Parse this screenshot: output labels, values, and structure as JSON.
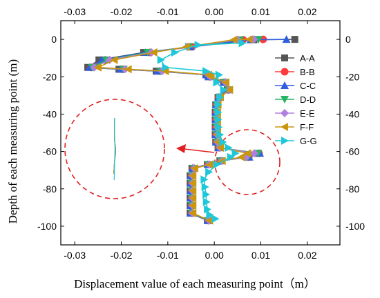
{
  "chart_data": {
    "type": "line",
    "xlabel": "Displacement value of each measuring point（m）",
    "ylabel": "Depth of each measuring point (m)",
    "xlim": [
      -0.033,
      0.027
    ],
    "ylim": [
      -110,
      10
    ],
    "x_ticks": [
      -0.03,
      -0.02,
      -0.01,
      0.0,
      0.01,
      0.02
    ],
    "x_tick_labels": [
      "-0.03",
      "-0.02",
      "-0.01",
      "0.00",
      "0.01",
      "0.02"
    ],
    "y_ticks": [
      0,
      -20,
      -40,
      -60,
      -80,
      -100
    ],
    "y_tick_labels": [
      "0",
      "-20",
      "-40",
      "-60",
      "-80",
      "-100"
    ],
    "grid": false,
    "legend_position": "right",
    "series": [
      {
        "name": "A-A",
        "color": "#555555",
        "marker": "square",
        "points": [
          [
            0.0173,
            0
          ],
          [
            0.0085,
            -0.2
          ],
          [
            -0.005,
            -4
          ],
          [
            -0.0152,
            -7
          ],
          [
            -0.0248,
            -11
          ],
          [
            -0.0272,
            -15
          ],
          [
            -0.0205,
            -16
          ],
          [
            -0.0125,
            -17
          ],
          [
            -0.0018,
            -19
          ],
          [
            -0.0013,
            -20
          ],
          [
            0.002,
            -23
          ],
          [
            0.0028,
            -27
          ],
          [
            0.0008,
            -31
          ],
          [
            0.0003,
            -35
          ],
          [
            0.0002,
            -39
          ],
          [
            0.0002,
            -43
          ],
          [
            0.0002,
            -47
          ],
          [
            0.0002,
            -51
          ],
          [
            0.0003,
            -55
          ],
          [
            0.0008,
            -58
          ],
          [
            0.0092,
            -61
          ],
          [
            0.0072,
            -63
          ],
          [
            0.0012,
            -65
          ],
          [
            -0.0015,
            -67
          ],
          [
            -0.0048,
            -69
          ],
          [
            -0.0052,
            -73
          ],
          [
            -0.0052,
            -77
          ],
          [
            -0.0052,
            -81
          ],
          [
            -0.0052,
            -85
          ],
          [
            -0.0052,
            -89
          ],
          [
            -0.0052,
            -93
          ],
          [
            -0.0015,
            -97
          ]
        ]
      },
      {
        "name": "B-B",
        "color": "#ff3b3b",
        "marker": "circle",
        "points": [
          [
            0.0105,
            0
          ],
          [
            0.0062,
            -0.2
          ],
          [
            -0.0048,
            -4
          ],
          [
            -0.0138,
            -7
          ],
          [
            -0.0235,
            -11
          ],
          [
            -0.0265,
            -15
          ],
          [
            -0.0198,
            -16
          ],
          [
            -0.0118,
            -17
          ],
          [
            -0.0015,
            -19
          ],
          [
            -0.001,
            -20
          ],
          [
            0.0022,
            -23
          ],
          [
            0.003,
            -27
          ],
          [
            0.001,
            -31
          ],
          [
            0.0005,
            -35
          ],
          [
            0.0004,
            -39
          ],
          [
            0.0004,
            -43
          ],
          [
            0.0004,
            -47
          ],
          [
            0.0004,
            -51
          ],
          [
            0.0005,
            -55
          ],
          [
            0.001,
            -58
          ],
          [
            0.0096,
            -61
          ],
          [
            0.0074,
            -63
          ],
          [
            0.0014,
            -65
          ],
          [
            -0.0013,
            -67
          ],
          [
            -0.0045,
            -69
          ],
          [
            -0.0049,
            -73
          ],
          [
            -0.0049,
            -77
          ],
          [
            -0.0049,
            -81
          ],
          [
            -0.0049,
            -85
          ],
          [
            -0.0049,
            -89
          ],
          [
            -0.0049,
            -93
          ],
          [
            -0.0013,
            -97
          ]
        ]
      },
      {
        "name": "C-C",
        "color": "#2f5fe0",
        "marker": "triangle-up",
        "points": [
          [
            0.0155,
            0
          ],
          [
            0.0078,
            -0.2
          ],
          [
            -0.0052,
            -4
          ],
          [
            -0.0148,
            -7
          ],
          [
            -0.0242,
            -11
          ],
          [
            -0.0268,
            -15
          ],
          [
            -0.0202,
            -16
          ],
          [
            -0.0122,
            -17
          ],
          [
            -0.0017,
            -19
          ],
          [
            -0.0012,
            -20
          ],
          [
            0.0021,
            -23
          ],
          [
            0.0029,
            -27
          ],
          [
            0.0009,
            -31
          ],
          [
            0.0004,
            -35
          ],
          [
            0.0003,
            -39
          ],
          [
            0.0003,
            -43
          ],
          [
            0.0003,
            -47
          ],
          [
            0.0003,
            -51
          ],
          [
            0.0004,
            -55
          ],
          [
            0.0009,
            -58
          ],
          [
            0.0098,
            -61
          ],
          [
            0.0075,
            -63
          ],
          [
            0.0013,
            -65
          ],
          [
            -0.0014,
            -67
          ],
          [
            -0.0047,
            -69
          ],
          [
            -0.0051,
            -73
          ],
          [
            -0.0051,
            -77
          ],
          [
            -0.0051,
            -81
          ],
          [
            -0.0051,
            -85
          ],
          [
            -0.0051,
            -89
          ],
          [
            -0.0051,
            -93
          ],
          [
            -0.0014,
            -97
          ]
        ]
      },
      {
        "name": "D-D",
        "color": "#28b463",
        "marker": "triangle-down",
        "points": [
          [
            0.0095,
            0
          ],
          [
            0.0055,
            -0.2
          ],
          [
            -0.0055,
            -4
          ],
          [
            -0.0143,
            -7
          ],
          [
            -0.0232,
            -11
          ],
          [
            -0.0262,
            -15
          ],
          [
            -0.0195,
            -16
          ],
          [
            -0.0115,
            -17
          ],
          [
            -0.0014,
            -19
          ],
          [
            -0.0009,
            -20
          ],
          [
            0.0023,
            -23
          ],
          [
            0.0031,
            -27
          ],
          [
            0.0011,
            -31
          ],
          [
            0.0006,
            -35
          ],
          [
            0.0005,
            -39
          ],
          [
            0.0005,
            -43
          ],
          [
            0.0005,
            -47
          ],
          [
            0.0005,
            -51
          ],
          [
            0.0006,
            -55
          ],
          [
            0.0011,
            -58
          ],
          [
            0.0094,
            -61
          ],
          [
            0.0072,
            -63
          ],
          [
            0.0015,
            -65
          ],
          [
            -0.0012,
            -67
          ],
          [
            -0.0044,
            -69
          ],
          [
            -0.0048,
            -73
          ],
          [
            -0.0048,
            -77
          ],
          [
            -0.0048,
            -81
          ],
          [
            -0.0048,
            -85
          ],
          [
            -0.0048,
            -89
          ],
          [
            -0.0048,
            -93
          ],
          [
            -0.0012,
            -97
          ]
        ]
      },
      {
        "name": "E-E",
        "color": "#b07fe0",
        "marker": "diamond",
        "points": [
          [
            0.0085,
            0
          ],
          [
            0.005,
            -0.2
          ],
          [
            -0.0058,
            -4
          ],
          [
            -0.0135,
            -7
          ],
          [
            -0.0225,
            -11
          ],
          [
            -0.0258,
            -15
          ],
          [
            -0.0192,
            -16
          ],
          [
            -0.0112,
            -17
          ],
          [
            -0.0013,
            -19
          ],
          [
            -0.0008,
            -20
          ],
          [
            0.0024,
            -23
          ],
          [
            0.0032,
            -27
          ],
          [
            0.0012,
            -31
          ],
          [
            0.0007,
            -35
          ],
          [
            0.0006,
            -39
          ],
          [
            0.0006,
            -43
          ],
          [
            0.0006,
            -47
          ],
          [
            0.0006,
            -51
          ],
          [
            0.0007,
            -55
          ],
          [
            0.0012,
            -58
          ],
          [
            0.0086,
            -61
          ],
          [
            0.0068,
            -63
          ],
          [
            0.0016,
            -65
          ],
          [
            -0.0011,
            -67
          ],
          [
            -0.0043,
            -69
          ],
          [
            -0.0047,
            -73
          ],
          [
            -0.0047,
            -77
          ],
          [
            -0.0047,
            -81
          ],
          [
            -0.0047,
            -85
          ],
          [
            -0.0047,
            -89
          ],
          [
            -0.0047,
            -93
          ],
          [
            -0.0011,
            -97
          ]
        ]
      },
      {
        "name": "F-F",
        "color": "#c9960c",
        "marker": "triangle-left",
        "points": [
          [
            0.0075,
            0
          ],
          [
            0.0042,
            -0.2
          ],
          [
            -0.006,
            -4
          ],
          [
            -0.013,
            -7
          ],
          [
            -0.0215,
            -11
          ],
          [
            -0.025,
            -15
          ],
          [
            -0.0185,
            -16
          ],
          [
            -0.0105,
            -17
          ],
          [
            -0.0012,
            -19
          ],
          [
            -0.0007,
            -20
          ],
          [
            0.0025,
            -23
          ],
          [
            0.0033,
            -27
          ],
          [
            0.0013,
            -31
          ],
          [
            0.0008,
            -35
          ],
          [
            0.0007,
            -39
          ],
          [
            0.0007,
            -43
          ],
          [
            0.0007,
            -47
          ],
          [
            0.0007,
            -51
          ],
          [
            0.0008,
            -55
          ],
          [
            0.0013,
            -58
          ],
          [
            0.0072,
            -61
          ],
          [
            0.0058,
            -63
          ],
          [
            0.0017,
            -65
          ],
          [
            -0.001,
            -67
          ],
          [
            -0.0042,
            -69
          ],
          [
            -0.0046,
            -73
          ],
          [
            -0.0046,
            -77
          ],
          [
            -0.0046,
            -81
          ],
          [
            -0.0046,
            -85
          ],
          [
            -0.0046,
            -89
          ],
          [
            -0.0046,
            -93
          ],
          [
            -0.001,
            -97
          ]
        ]
      },
      {
        "name": "G-G",
        "color": "#1ec8d8",
        "marker": "triangle-right",
        "points": [
          [
            0.006,
            -2
          ],
          [
            -0.0035,
            -3
          ],
          [
            -0.0085,
            -7
          ],
          [
            -0.0115,
            -11
          ],
          [
            -0.0105,
            -15
          ],
          [
            -0.0018,
            -17
          ],
          [
            0.001,
            -19
          ],
          [
            0.0005,
            -23
          ],
          [
            0.002,
            -27
          ],
          [
            0.0012,
            -31
          ],
          [
            0.0008,
            -35
          ],
          [
            0.0008,
            -39
          ],
          [
            0.0008,
            -43
          ],
          [
            0.0009,
            -47
          ],
          [
            0.0012,
            -51
          ],
          [
            0.0018,
            -55
          ],
          [
            0.003,
            -58
          ],
          [
            0.0045,
            -61
          ],
          [
            0.0035,
            -63
          ],
          [
            0.0005,
            -67
          ],
          [
            -0.0012,
            -71
          ],
          [
            -0.0022,
            -75
          ],
          [
            -0.002,
            -79
          ],
          [
            -0.0018,
            -83
          ],
          [
            -0.0017,
            -87
          ],
          [
            -0.0015,
            -91
          ],
          [
            -0.001,
            -94
          ],
          [
            0.0002,
            -96
          ]
        ]
      }
    ]
  }
}
